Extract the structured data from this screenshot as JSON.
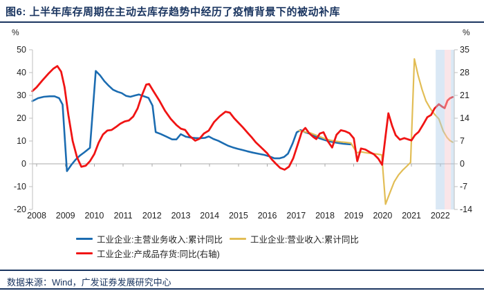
{
  "header": {
    "title": "图6:  上半年库存周期在主动去库存趋势中经历了疫情背景下的被动补库"
  },
  "footer": {
    "source_label": "数据来源：Wind，广发证券发展研究中心"
  },
  "colors": {
    "navy": "#1A3560",
    "axis_line": "#BFBFBF",
    "zero_line": "#A8A8A8",
    "band_blue": "#AECBE8",
    "band_pink": "#F5C6CC"
  },
  "chart_data": {
    "type": "line",
    "title": "上半年库存周期在主动去库存趋势中经历了疫情背景下的被动补库",
    "left_axis": {
      "unit": "%",
      "ticks": [
        50,
        40,
        30,
        20,
        10,
        0,
        -10,
        -20
      ],
      "range": [
        -20,
        50
      ]
    },
    "right_axis": {
      "unit": "%",
      "ticks": [
        35,
        28,
        21,
        14,
        7,
        0,
        -7,
        -14
      ],
      "range": [
        -14,
        35
      ]
    },
    "x_axis": {
      "years": [
        2008,
        2009,
        2010,
        2011,
        2012,
        2013,
        2014,
        2015,
        2016,
        2017,
        2018,
        2019,
        2020,
        2021,
        2022
      ]
    },
    "legend_position": "bottom",
    "grid": "zero-line-only",
    "highlight_bands": [
      {
        "x0": 2021.84,
        "x1": 2022.15,
        "color": "#AECBE8"
      },
      {
        "x0": 2022.15,
        "x1": 2022.37,
        "color": "#F5C6CC"
      },
      {
        "x0": 2022.37,
        "x1": 2022.5,
        "color": "#AECBE8"
      }
    ],
    "series": [
      {
        "id": "main-business-revenue",
        "name": "工业企业:主营业务收入:累计同比",
        "axis": "left",
        "color": "#1B6CB1",
        "width": 2.6,
        "points": [
          [
            2007.85,
            27.5
          ],
          [
            2008.05,
            28.8
          ],
          [
            2008.25,
            29.4
          ],
          [
            2008.45,
            29.6
          ],
          [
            2008.62,
            29.6
          ],
          [
            2008.78,
            28.8
          ],
          [
            2008.9,
            26.0
          ],
          [
            2009.05,
            -3.2
          ],
          [
            2009.2,
            -0.5
          ],
          [
            2009.35,
            1.8
          ],
          [
            2009.5,
            3.6
          ],
          [
            2009.65,
            5.0
          ],
          [
            2009.85,
            7.0
          ],
          [
            2010.05,
            40.7
          ],
          [
            2010.2,
            38.8
          ],
          [
            2010.35,
            36.2
          ],
          [
            2010.5,
            34.2
          ],
          [
            2010.65,
            32.5
          ],
          [
            2010.8,
            31.6
          ],
          [
            2010.95,
            31.0
          ],
          [
            2011.1,
            29.8
          ],
          [
            2011.25,
            29.4
          ],
          [
            2011.42,
            30.0
          ],
          [
            2011.55,
            30.4
          ],
          [
            2011.7,
            29.7
          ],
          [
            2011.88,
            28.9
          ],
          [
            2012.02,
            25.5
          ],
          [
            2012.13,
            13.9
          ],
          [
            2012.3,
            13.1
          ],
          [
            2012.5,
            11.9
          ],
          [
            2012.7,
            10.7
          ],
          [
            2012.85,
            10.7
          ],
          [
            2013.0,
            13.0
          ],
          [
            2013.17,
            11.9
          ],
          [
            2013.34,
            11.5
          ],
          [
            2013.5,
            11.3
          ],
          [
            2013.67,
            11.2
          ],
          [
            2013.84,
            11.4
          ],
          [
            2013.97,
            12.0
          ],
          [
            2014.13,
            10.9
          ],
          [
            2014.3,
            10.1
          ],
          [
            2014.47,
            9.0
          ],
          [
            2014.64,
            7.9
          ],
          [
            2014.8,
            7.2
          ],
          [
            2014.97,
            6.6
          ],
          [
            2015.13,
            6.1
          ],
          [
            2015.3,
            5.5
          ],
          [
            2015.5,
            4.9
          ],
          [
            2015.7,
            4.4
          ],
          [
            2015.9,
            3.9
          ],
          [
            2016.08,
            3.2
          ],
          [
            2016.25,
            2.4
          ],
          [
            2016.42,
            2.4
          ],
          [
            2016.58,
            3.0
          ],
          [
            2016.72,
            4.5
          ],
          [
            2016.88,
            9.0
          ],
          [
            2017.02,
            13.8
          ],
          [
            2017.15,
            14.8
          ],
          [
            2017.3,
            13.9
          ],
          [
            2017.47,
            13.2
          ],
          [
            2017.63,
            12.3
          ],
          [
            2017.8,
            11.2
          ],
          [
            2017.97,
            10.5
          ],
          [
            2018.13,
            9.9
          ],
          [
            2018.3,
            9.5
          ],
          [
            2018.47,
            9.1
          ],
          [
            2018.63,
            8.8
          ],
          [
            2018.8,
            8.6
          ],
          [
            2018.92,
            8.5
          ]
        ]
      },
      {
        "id": "operating-revenue",
        "name": "工业企业:营业收入:累计同比",
        "axis": "left",
        "color": "#E2BD55",
        "width": 2.2,
        "points": [
          [
            2017.1,
            14.6
          ],
          [
            2017.3,
            14.0
          ],
          [
            2017.5,
            13.5
          ],
          [
            2017.68,
            12.6
          ],
          [
            2017.85,
            11.8
          ],
          [
            2018.02,
            10.9
          ],
          [
            2018.2,
            10.3
          ],
          [
            2018.38,
            9.9
          ],
          [
            2018.55,
            9.6
          ],
          [
            2018.72,
            9.4
          ],
          [
            2018.9,
            9.1
          ],
          [
            2019.1,
            4.9
          ],
          [
            2019.27,
            5.2
          ],
          [
            2019.45,
            4.8
          ],
          [
            2019.63,
            4.5
          ],
          [
            2019.8,
            4.3
          ],
          [
            2019.97,
            3.9
          ],
          [
            2020.1,
            -17.7
          ],
          [
            2020.25,
            -12.8
          ],
          [
            2020.4,
            -7.9
          ],
          [
            2020.55,
            -4.9
          ],
          [
            2020.7,
            -2.7
          ],
          [
            2020.85,
            -0.9
          ],
          [
            2020.97,
            0.6
          ],
          [
            2021.1,
            46.0
          ],
          [
            2021.23,
            38.8
          ],
          [
            2021.37,
            32.5
          ],
          [
            2021.5,
            27.6
          ],
          [
            2021.65,
            24.3
          ],
          [
            2021.8,
            21.7
          ],
          [
            2021.95,
            19.7
          ],
          [
            2022.1,
            14.4
          ],
          [
            2022.23,
            11.6
          ],
          [
            2022.33,
            10.2
          ],
          [
            2022.43,
            9.5
          ]
        ]
      },
      {
        "id": "finished-goods-inventory",
        "name": "工业企业:产成品存货:同比(右轴)",
        "axis": "right",
        "color": "#F01414",
        "width": 2.8,
        "points": [
          [
            2007.85,
            22.3
          ],
          [
            2008.0,
            23.5
          ],
          [
            2008.2,
            25.6
          ],
          [
            2008.4,
            27.6
          ],
          [
            2008.58,
            29.2
          ],
          [
            2008.72,
            30.0
          ],
          [
            2008.85,
            28.3
          ],
          [
            2008.97,
            23.5
          ],
          [
            2009.1,
            15.0
          ],
          [
            2009.25,
            7.0
          ],
          [
            2009.4,
            2.0
          ],
          [
            2009.55,
            -0.9
          ],
          [
            2009.7,
            -0.6
          ],
          [
            2009.85,
            0.8
          ],
          [
            2010.0,
            3.0
          ],
          [
            2010.15,
            6.5
          ],
          [
            2010.3,
            9.0
          ],
          [
            2010.45,
            10.2
          ],
          [
            2010.6,
            10.4
          ],
          [
            2010.75,
            11.3
          ],
          [
            2010.9,
            12.3
          ],
          [
            2011.05,
            13.0
          ],
          [
            2011.2,
            13.3
          ],
          [
            2011.35,
            14.5
          ],
          [
            2011.5,
            17.0
          ],
          [
            2011.65,
            21.0
          ],
          [
            2011.8,
            24.3
          ],
          [
            2011.9,
            24.5
          ],
          [
            2012.05,
            22.3
          ],
          [
            2012.25,
            19.5
          ],
          [
            2012.45,
            16.3
          ],
          [
            2012.65,
            13.8
          ],
          [
            2012.85,
            11.9
          ],
          [
            2013.0,
            10.8
          ],
          [
            2013.15,
            10.4
          ],
          [
            2013.3,
            8.6
          ],
          [
            2013.5,
            7.1
          ],
          [
            2013.65,
            7.7
          ],
          [
            2013.8,
            9.3
          ],
          [
            2013.97,
            10.2
          ],
          [
            2014.15,
            12.8
          ],
          [
            2014.35,
            14.6
          ],
          [
            2014.55,
            16.0
          ],
          [
            2014.7,
            15.7
          ],
          [
            2014.85,
            14.0
          ],
          [
            2015.0,
            12.6
          ],
          [
            2015.15,
            11.2
          ],
          [
            2015.3,
            9.7
          ],
          [
            2015.45,
            8.2
          ],
          [
            2015.6,
            6.6
          ],
          [
            2015.8,
            4.9
          ],
          [
            2016.0,
            3.2
          ],
          [
            2016.15,
            1.4
          ],
          [
            2016.3,
            0.0
          ],
          [
            2016.45,
            -1.3
          ],
          [
            2016.6,
            -1.8
          ],
          [
            2016.75,
            -0.9
          ],
          [
            2016.9,
            1.7
          ],
          [
            2017.05,
            5.8
          ],
          [
            2017.2,
            9.9
          ],
          [
            2017.32,
            11.0
          ],
          [
            2017.45,
            9.4
          ],
          [
            2017.6,
            8.2
          ],
          [
            2017.7,
            7.6
          ],
          [
            2017.82,
            9.3
          ],
          [
            2017.95,
            9.7
          ],
          [
            2018.1,
            6.9
          ],
          [
            2018.25,
            5.0
          ],
          [
            2018.4,
            8.9
          ],
          [
            2018.55,
            10.3
          ],
          [
            2018.7,
            10.0
          ],
          [
            2018.85,
            9.4
          ],
          [
            2019.0,
            7.8
          ],
          [
            2019.12,
            0.8
          ],
          [
            2019.25,
            4.7
          ],
          [
            2019.4,
            4.4
          ],
          [
            2019.55,
            3.6
          ],
          [
            2019.7,
            2.9
          ],
          [
            2019.85,
            1.6
          ],
          [
            2019.98,
            -0.3
          ],
          [
            2020.1,
            8.5
          ],
          [
            2020.2,
            15.5
          ],
          [
            2020.33,
            11.6
          ],
          [
            2020.45,
            8.8
          ],
          [
            2020.6,
            7.4
          ],
          [
            2020.75,
            7.9
          ],
          [
            2020.88,
            7.5
          ],
          [
            2021.0,
            7.2
          ],
          [
            2021.12,
            8.8
          ],
          [
            2021.25,
            9.8
          ],
          [
            2021.4,
            12.0
          ],
          [
            2021.55,
            14.3
          ],
          [
            2021.68,
            15.0
          ],
          [
            2021.8,
            17.0
          ],
          [
            2021.95,
            18.3
          ],
          [
            2022.07,
            17.5
          ],
          [
            2022.15,
            17.1
          ],
          [
            2022.25,
            19.4
          ],
          [
            2022.33,
            20.1
          ],
          [
            2022.43,
            20.5
          ]
        ]
      }
    ]
  }
}
